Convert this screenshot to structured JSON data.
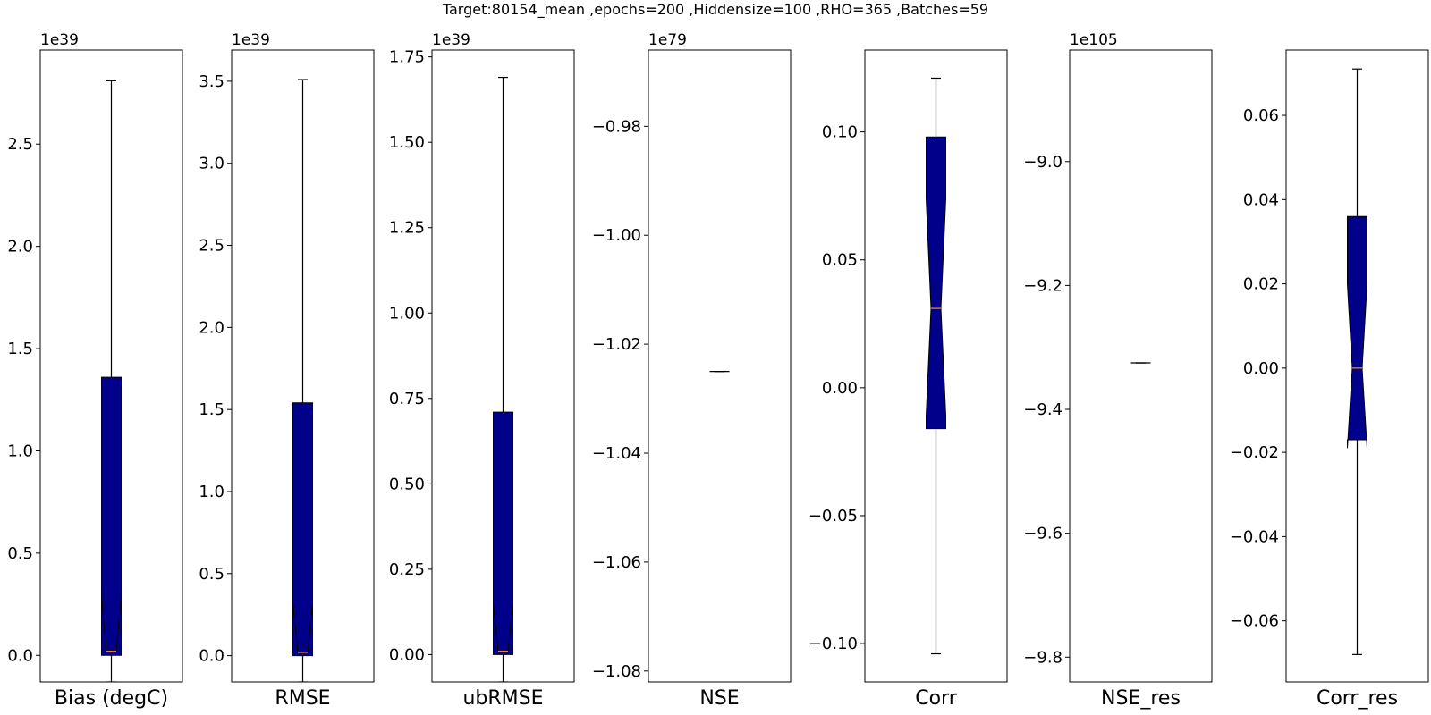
{
  "figure": {
    "suptitle": "Target:80154_mean ,epochs=200 ,Hiddensize=100 ,RHO=365 ,Batches=59"
  },
  "style": {
    "box_fill": "#00008b",
    "box_edge": "#000000",
    "median_color": "#ff7f0e",
    "whisker_color": "#000000"
  },
  "chart_data": [
    {
      "type": "boxplot",
      "title": "",
      "xlabel": "Bias (degC)",
      "offset_label": "1e39",
      "ylim": [
        -0.13,
        2.96
      ],
      "yticks": [
        0.0,
        0.5,
        1.0,
        1.5,
        2.0,
        2.5
      ],
      "ytick_labels": [
        "0.0",
        "0.5",
        "1.0",
        "1.5",
        "2.0",
        "2.5"
      ],
      "box": {
        "whisker_low": -0.13,
        "q1": 0.0,
        "median": 0.02,
        "q3": 1.36,
        "whisker_high": 2.81,
        "notch_low": 0.29,
        "notch_high": 0.29
      }
    },
    {
      "type": "boxplot",
      "title": "",
      "xlabel": "RMSE",
      "offset_label": "1e39",
      "ylim": [
        -0.16,
        3.69
      ],
      "yticks": [
        0.0,
        0.5,
        1.0,
        1.5,
        2.0,
        2.5,
        3.0,
        3.5
      ],
      "ytick_labels": [
        "0.0",
        "0.5",
        "1.0",
        "1.5",
        "2.0",
        "2.5",
        "3.0",
        "3.5"
      ],
      "box": {
        "whisker_low": -0.16,
        "q1": 0.0,
        "median": 0.02,
        "q3": 1.54,
        "whisker_high": 3.51,
        "notch_low": 0.32,
        "notch_high": 0.32
      }
    },
    {
      "type": "boxplot",
      "title": "",
      "xlabel": "ubRMSE",
      "offset_label": "1e39",
      "ylim": [
        -0.08,
        1.77
      ],
      "yticks": [
        0.0,
        0.25,
        0.5,
        0.75,
        1.0,
        1.25,
        1.5,
        1.75
      ],
      "ytick_labels": [
        "0.00",
        "0.25",
        "0.50",
        "0.75",
        "1.00",
        "1.25",
        "1.50",
        "1.75"
      ],
      "box": {
        "whisker_low": -0.08,
        "q1": 0.0,
        "median": 0.01,
        "q3": 0.71,
        "whisker_high": 1.69,
        "notch_low": 0.15,
        "notch_high": 0.15
      }
    },
    {
      "type": "boxplot",
      "title": "",
      "xlabel": "NSE",
      "offset_label": "1e79",
      "ylim": [
        -1.082,
        -0.966
      ],
      "yticks": [
        -1.08,
        -1.06,
        -1.04,
        -1.02,
        -1.0,
        -0.98
      ],
      "ytick_labels": [
        "−1.08",
        "−1.06",
        "−1.04",
        "−1.02",
        "−1.00",
        "−0.98"
      ],
      "box": {
        "whisker_low": -1.025,
        "q1": -1.025,
        "median": -1.025,
        "q3": -1.025,
        "whisker_high": -1.025,
        "notch_low": -1.025,
        "notch_high": -1.025
      }
    },
    {
      "type": "boxplot",
      "title": "",
      "xlabel": "Corr",
      "offset_label": "",
      "ylim": [
        -0.115,
        0.132
      ],
      "yticks": [
        -0.1,
        -0.05,
        0.0,
        0.05,
        0.1
      ],
      "ytick_labels": [
        "−0.10",
        "−0.05",
        "0.00",
        "0.05",
        "0.10"
      ],
      "box": {
        "whisker_low": -0.104,
        "q1": -0.016,
        "median": 0.031,
        "q3": 0.098,
        "whisker_high": 0.121,
        "notch_low": -0.011,
        "notch_high": 0.074
      }
    },
    {
      "type": "boxplot",
      "title": "",
      "xlabel": "NSE_res",
      "offset_label": "1e105",
      "ylim": [
        -9.84,
        -8.82
      ],
      "yticks": [
        -9.8,
        -9.6,
        -9.4,
        -9.2,
        -9.0
      ],
      "ytick_labels": [
        "−9.8",
        "−9.6",
        "−9.4",
        "−9.2",
        "−9.0"
      ],
      "box": {
        "whisker_low": -9.325,
        "q1": -9.325,
        "median": -9.325,
        "q3": -9.325,
        "whisker_high": -9.325,
        "notch_low": -9.325,
        "notch_high": -9.325
      }
    },
    {
      "type": "boxplot",
      "title": "",
      "xlabel": "Corr_res",
      "offset_label": "",
      "ylim": [
        -0.0745,
        0.0755
      ],
      "yticks": [
        -0.06,
        -0.04,
        -0.02,
        0.0,
        0.02,
        0.04,
        0.06
      ],
      "ytick_labels": [
        "−0.06",
        "−0.04",
        "−0.02",
        "0.00",
        "0.02",
        "0.04",
        "0.06"
      ],
      "box": {
        "whisker_low": -0.068,
        "q1": -0.017,
        "median": 0.0,
        "q3": 0.036,
        "whisker_high": 0.071,
        "notch_low": -0.019,
        "notch_high": 0.02
      }
    }
  ]
}
